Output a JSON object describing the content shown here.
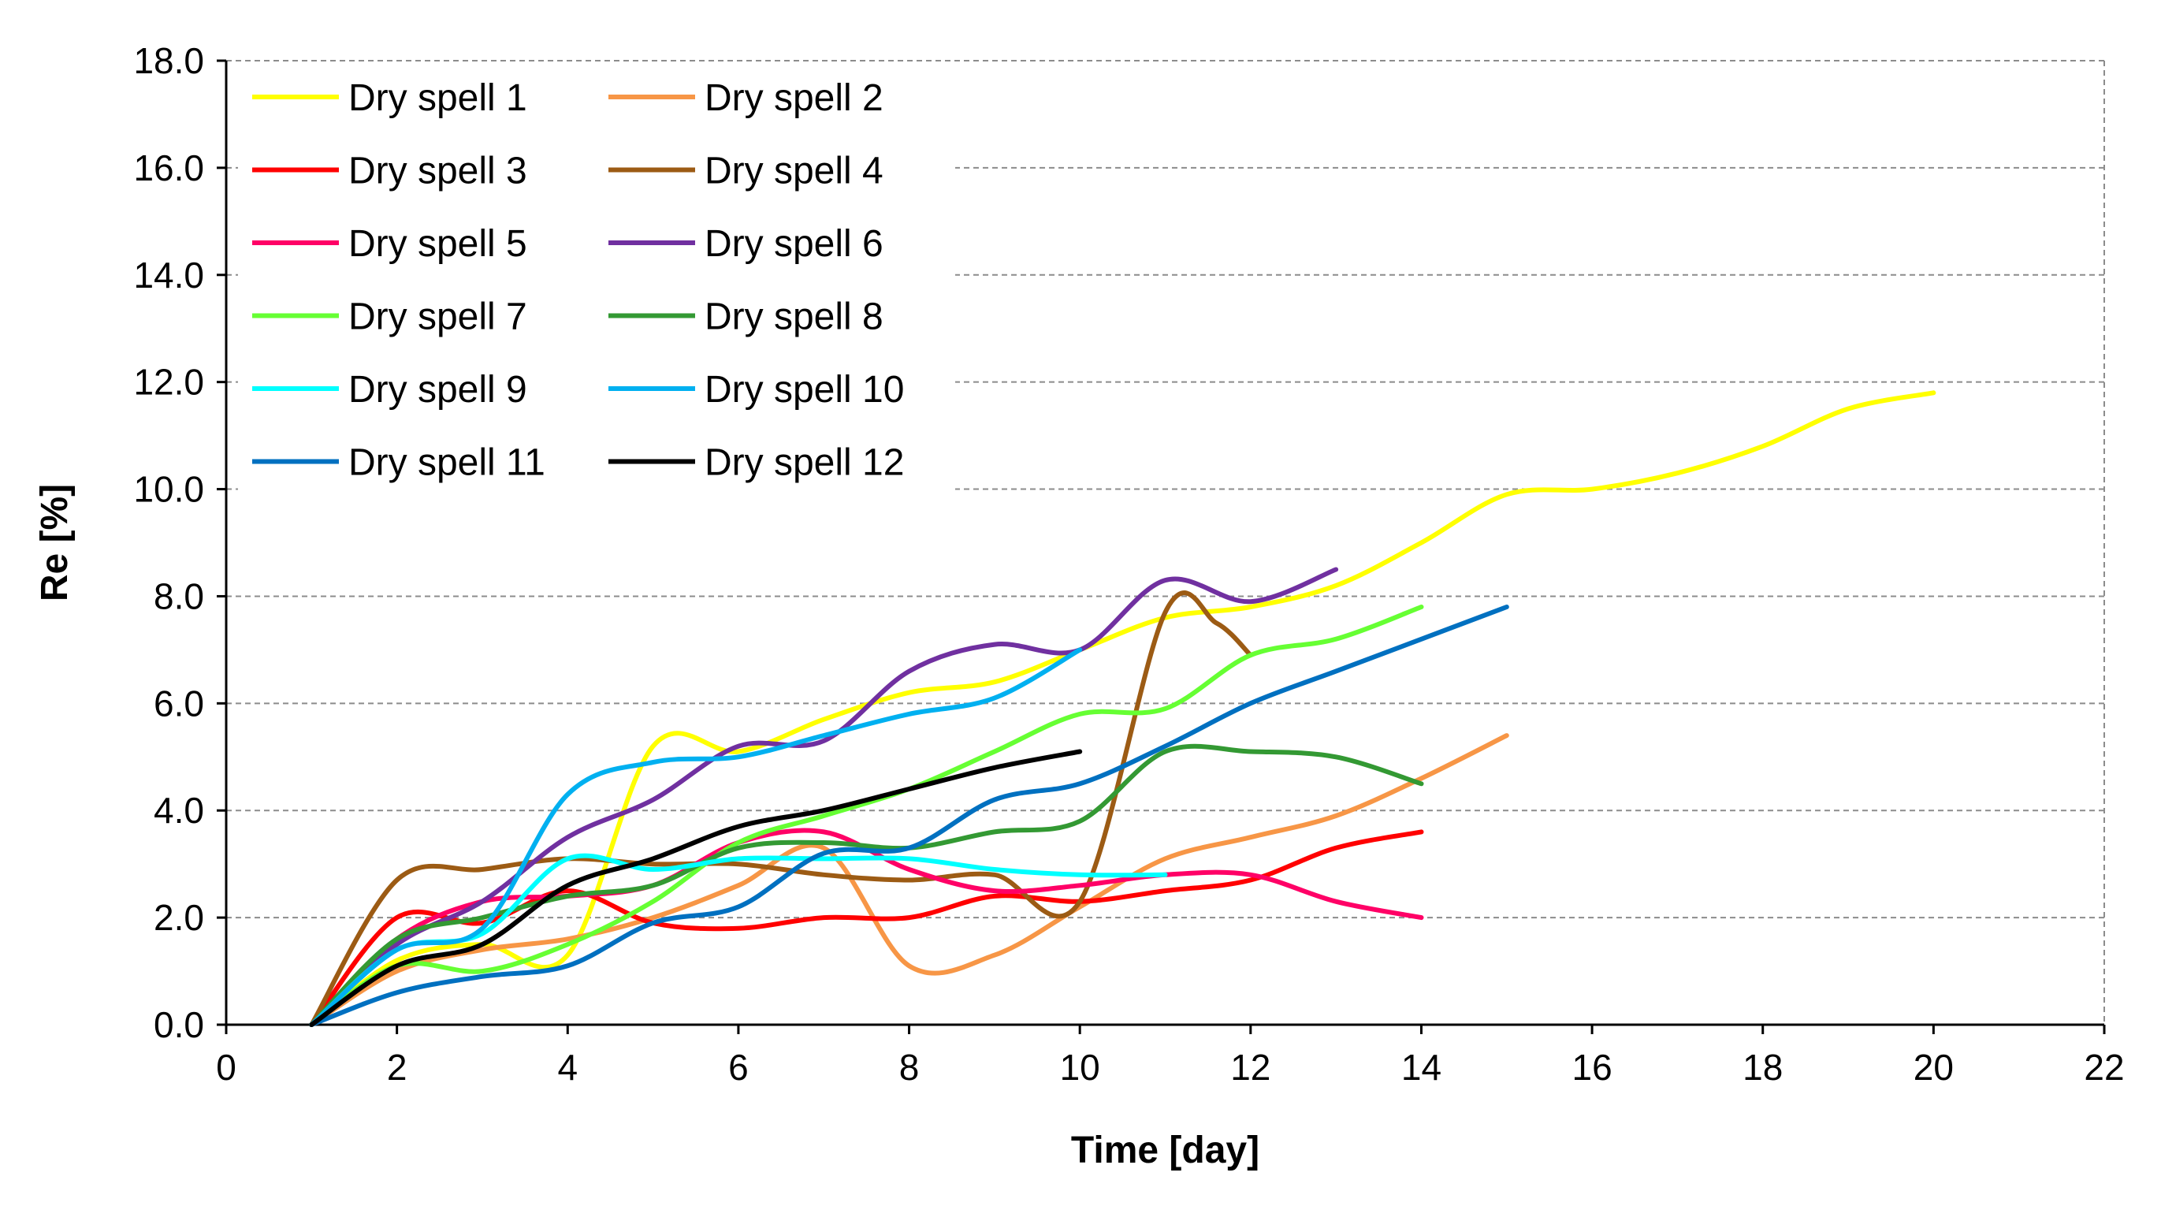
{
  "chart_data": {
    "type": "line",
    "title": "",
    "xlabel": "Time [day]",
    "ylabel": "Re [%]",
    "xlim": [
      0,
      22
    ],
    "ylim": [
      0,
      18
    ],
    "x_ticks": [
      0,
      2,
      4,
      6,
      8,
      10,
      12,
      14,
      16,
      18,
      20,
      22
    ],
    "x_tick_labels": [
      "0",
      "2",
      "4",
      "6",
      "8",
      "10",
      "12",
      "14",
      "16",
      "18",
      "20",
      "22"
    ],
    "y_ticks": [
      0,
      2,
      4,
      6,
      8,
      10,
      12,
      14,
      16,
      18
    ],
    "y_tick_labels": [
      "0.0",
      "2.0",
      "4.0",
      "6.0",
      "8.0",
      "10.0",
      "12.0",
      "14.0",
      "16.0",
      "18.0"
    ],
    "grid": "horizontal-dashed",
    "legend_position": "top-left",
    "series": [
      {
        "name": "Dry spell 1",
        "color": "#FFFF00",
        "x": [
          1,
          2,
          3,
          4,
          5,
          6,
          7,
          8,
          9,
          10,
          11,
          12,
          13,
          14,
          15,
          16,
          17,
          18,
          19,
          20
        ],
        "y": [
          0,
          1.2,
          1.5,
          1.3,
          5.2,
          5.1,
          5.7,
          6.2,
          6.4,
          7.0,
          7.6,
          7.8,
          8.2,
          9.0,
          9.9,
          10.0,
          10.3,
          10.8,
          11.5,
          11.8
        ]
      },
      {
        "name": "Dry spell 2",
        "color": "#F79646",
        "x": [
          1,
          2,
          3,
          4,
          5,
          6,
          7,
          8,
          9,
          10,
          11,
          12,
          13,
          14,
          15
        ],
        "y": [
          0,
          1.0,
          1.4,
          1.6,
          2.0,
          2.6,
          3.3,
          1.1,
          1.3,
          2.2,
          3.1,
          3.5,
          3.9,
          4.6,
          5.4
        ]
      },
      {
        "name": "Dry spell 3",
        "color": "#FF0000",
        "x": [
          1,
          2,
          3,
          4,
          5,
          6,
          7,
          8,
          9,
          10,
          11,
          12,
          13,
          14
        ],
        "y": [
          0,
          2.0,
          1.9,
          2.5,
          1.9,
          1.8,
          2.0,
          2.0,
          2.4,
          2.3,
          2.5,
          2.7,
          3.3,
          3.6
        ]
      },
      {
        "name": "Dry spell 4",
        "color": "#9C5B14",
        "x": [
          1,
          2,
          3,
          4,
          5,
          6,
          7,
          8,
          9,
          10,
          11,
          11.6,
          12
        ],
        "y": [
          0,
          2.7,
          2.9,
          3.1,
          3.0,
          3.0,
          2.8,
          2.7,
          2.8,
          2.3,
          7.7,
          7.5,
          6.9
        ]
      },
      {
        "name": "Dry spell 5",
        "color": "#FF0066",
        "x": [
          1,
          2,
          3,
          4,
          5,
          6,
          7,
          8,
          9,
          10,
          11,
          12,
          13,
          14
        ],
        "y": [
          0,
          1.6,
          2.3,
          2.4,
          2.6,
          3.4,
          3.6,
          2.9,
          2.5,
          2.6,
          2.8,
          2.8,
          2.3,
          2.0
        ]
      },
      {
        "name": "Dry spell 6",
        "color": "#7030A0",
        "x": [
          1,
          2,
          3,
          4,
          5,
          6,
          7,
          8,
          9,
          10,
          11,
          12,
          13
        ],
        "y": [
          0,
          1.5,
          2.3,
          3.5,
          4.2,
          5.2,
          5.3,
          6.6,
          7.1,
          7.0,
          8.3,
          7.9,
          8.5
        ]
      },
      {
        "name": "Dry spell 7",
        "color": "#66FF33",
        "x": [
          1,
          2,
          3,
          4,
          5,
          6,
          7,
          8,
          9,
          10,
          11,
          12,
          13,
          14
        ],
        "y": [
          0,
          1.1,
          1.0,
          1.5,
          2.3,
          3.4,
          3.9,
          4.4,
          5.1,
          5.8,
          5.9,
          6.9,
          7.2,
          7.8
        ]
      },
      {
        "name": "Dry spell 8",
        "color": "#339933",
        "x": [
          1,
          2,
          3,
          4,
          5,
          6,
          7,
          8,
          9,
          10,
          11,
          12,
          13,
          14
        ],
        "y": [
          0,
          1.6,
          2.0,
          2.4,
          2.6,
          3.3,
          3.4,
          3.3,
          3.6,
          3.8,
          5.1,
          5.1,
          5.0,
          4.5
        ]
      },
      {
        "name": "Dry spell 9",
        "color": "#00FFFF",
        "x": [
          1,
          2,
          3,
          4,
          5,
          6,
          7,
          8,
          9,
          10,
          11
        ],
        "y": [
          0,
          1.4,
          1.7,
          3.1,
          2.9,
          3.1,
          3.1,
          3.1,
          2.9,
          2.8,
          2.8
        ]
      },
      {
        "name": "Dry spell 10",
        "color": "#00B0F0",
        "x": [
          1,
          2,
          3,
          4,
          5,
          6,
          7,
          8,
          9,
          10
        ],
        "y": [
          0,
          1.4,
          1.8,
          4.3,
          4.9,
          5.0,
          5.4,
          5.8,
          6.1,
          7.0
        ]
      },
      {
        "name": "Dry spell 11",
        "color": "#0070C0",
        "x": [
          1,
          2,
          3,
          4,
          5,
          6,
          7,
          8,
          9,
          10,
          11,
          12,
          13,
          14,
          15
        ],
        "y": [
          0,
          0.6,
          0.9,
          1.1,
          1.9,
          2.2,
          3.2,
          3.3,
          4.2,
          4.5,
          5.2,
          6.0,
          6.6,
          7.2,
          7.8
        ]
      },
      {
        "name": "Dry spell 12",
        "color": "#000000",
        "x": [
          1,
          2,
          3,
          4,
          5,
          6,
          7,
          8,
          9,
          10
        ],
        "y": [
          0,
          1.1,
          1.5,
          2.6,
          3.1,
          3.7,
          4.0,
          4.4,
          4.8,
          5.1
        ]
      }
    ]
  }
}
